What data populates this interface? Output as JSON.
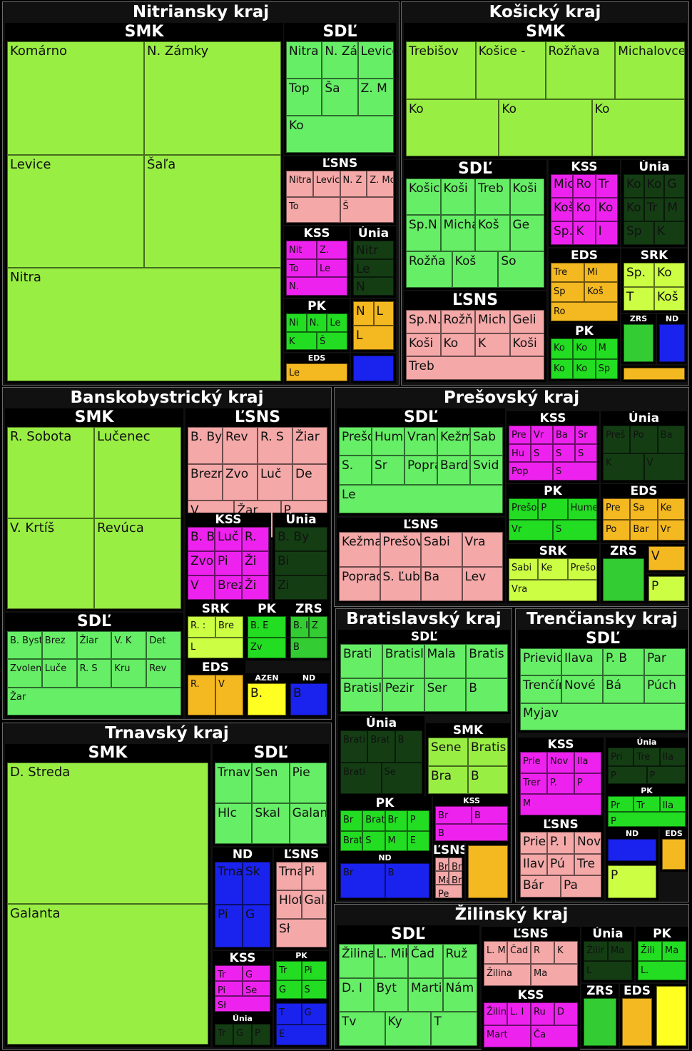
{
  "colors": {
    "SMK": "#99ee44",
    "SDĽ": "#66ee66",
    "ĽSNS": "#f4a8a8",
    "KSS": "#ee22ee",
    "Únia": "#143d14",
    "PK": "#22dd22",
    "EDS": "#f4b820",
    "SRK": "#ccff44",
    "ZRS": "#33cc33",
    "ND": "#1a22ee",
    "AZEN": "#ffff22"
  },
  "chart_data": {
    "type": "treemap",
    "regions": [
      {
        "name": "Nitriansky kraj",
        "parties": [
          {
            "name": "SMK",
            "districts": [
              "Komárno",
              "N. Zámky",
              "Levice",
              "Šaľa",
              "Nitra"
            ]
          },
          {
            "name": "SDĽ",
            "districts": [
              "Nitra",
              "N. Zámk",
              "Levice",
              "Top",
              "Ša",
              "Z. M",
              "Ko"
            ]
          },
          {
            "name": "ĽSNS",
            "districts": [
              "Nitra",
              "Levic",
              "N. Z",
              "Z. Mo",
              "To",
              "Š"
            ]
          },
          {
            "name": "KSS",
            "districts": [
              "Nit",
              "Z.",
              "To",
              "Le",
              "N."
            ]
          },
          {
            "name": "Únia",
            "districts": [
              "Nitr",
              "Le",
              "N"
            ]
          },
          {
            "name": "PK",
            "districts": [
              "Ni",
              "N.",
              "Le",
              "K",
              "Š"
            ]
          },
          {
            "name": "",
            "districts": [
              "N",
              "L",
              "L"
            ]
          },
          {
            "name": "EDS",
            "districts": [
              "Le"
            ]
          },
          {
            "name": "",
            "districts": []
          }
        ]
      },
      {
        "name": "Košický kraj",
        "parties": [
          {
            "name": "SMK",
            "districts": [
              "Trebišov",
              "Košice -",
              "Rožňava",
              "Michalovce",
              "Ko",
              "Ko",
              "Ko"
            ]
          },
          {
            "name": "SDĽ",
            "districts": [
              "Košic",
              "Koši",
              "Treb",
              "Koši",
              "Sp.N",
              "Micha",
              "Koš",
              "Ge",
              "Rožňa",
              "Koš",
              "So"
            ]
          },
          {
            "name": "KSS",
            "districts": [
              "Mic",
              "Ro",
              "Tr",
              "Koši",
              "Ko",
              "Ko",
              "Sp.N",
              "K",
              "I"
            ]
          },
          {
            "name": "Únia",
            "districts": [
              "Ko",
              "Ko",
              "G",
              "Ko",
              "Tr",
              "M",
              "Sp",
              "K"
            ]
          },
          {
            "name": "EDS",
            "districts": [
              "Tre",
              "Mi",
              "Sp",
              "Koš",
              "Ro"
            ]
          },
          {
            "name": "SRK",
            "districts": [
              "Sp.",
              "Ko",
              "T",
              "Koš"
            ]
          },
          {
            "name": "ĽSNS",
            "districts": [
              "Sp.N.",
              "Rožň",
              "Mich",
              "Geli",
              "Koši",
              "Ko",
              "K",
              "Koši",
              "Treb"
            ]
          },
          {
            "name": "PK",
            "districts": [
              "Ko",
              "Ko",
              "M",
              "Ko",
              "Ko",
              "Sp"
            ]
          },
          {
            "name": "ZRS",
            "districts": []
          },
          {
            "name": "ND",
            "districts": []
          },
          {
            "name": "",
            "districts": []
          }
        ]
      },
      {
        "name": "Banskobystrický kraj",
        "parties": [
          {
            "name": "SMK",
            "districts": [
              "R. Sobota",
              "Lučenec",
              "V. Krtíš",
              "Revúca"
            ]
          },
          {
            "name": "ĽSNS",
            "districts": [
              "B. Bys",
              "Rev",
              "R. S",
              "Žiar",
              "Brezno",
              "Zvo",
              "Luč",
              "De",
              "V.",
              "Žar",
              "P"
            ]
          },
          {
            "name": "SDĽ",
            "districts": [
              "B. Bystr",
              "Brez",
              "Žiar",
              "V. K",
              "Det",
              "Zvolen",
              "Luče",
              "R. S",
              "Kru",
              "Rev",
              "Žar"
            ]
          },
          {
            "name": "KSS",
            "districts": [
              "B. B",
              "Luč",
              "R.",
              "Zvol",
              "Pi",
              "Ži",
              "V",
              "Brez",
              "Ži"
            ]
          },
          {
            "name": "Únia",
            "districts": [
              "B. By",
              "Bi",
              "Zi"
            ]
          },
          {
            "name": "SRK",
            "districts": [
              "R. :",
              "Bre",
              "L"
            ]
          },
          {
            "name": "PK",
            "districts": [
              "B. E",
              "Zv"
            ]
          },
          {
            "name": "ZRS",
            "districts": [
              "B. I",
              "Z",
              "B"
            ]
          },
          {
            "name": "EDS",
            "districts": [
              "R.",
              "V"
            ]
          },
          {
            "name": "AZEN",
            "districts": [
              "B."
            ]
          },
          {
            "name": "ND",
            "districts": [
              "B"
            ]
          }
        ]
      },
      {
        "name": "Prešovský kraj",
        "parties": [
          {
            "name": "SDĽ",
            "districts": [
              "Prešov",
              "Hum",
              "Vran",
              "Kežm",
              "Sab",
              "S.",
              "Sr",
              "Poprad",
              "Bard",
              "Svid",
              "Le"
            ]
          },
          {
            "name": "KSS",
            "districts": [
              "Pre",
              "Vr",
              "Ba",
              "Sr",
              "Hu",
              "S",
              "S",
              "S",
              "Pop",
              "S"
            ]
          },
          {
            "name": "Únia",
            "districts": [
              "Preš",
              "Po",
              "Ba",
              "K",
              "V"
            ]
          },
          {
            "name": "ĽSNS",
            "districts": [
              "Kežmar",
              "Prešov",
              "Sabi",
              "Vra",
              "Poprad",
              "S. Ľub",
              "Ba",
              "Lev"
            ]
          },
          {
            "name": "PK",
            "districts": [
              "Prešo",
              "P",
              "Hume",
              "Vr",
              "S"
            ]
          },
          {
            "name": "EDS",
            "districts": [
              "Pre",
              "Sa",
              "Ke",
              "Po",
              "Bar",
              "Vr"
            ]
          },
          {
            "name": "SRK",
            "districts": [
              "Sabi",
              "Ke",
              "Prešo",
              "Vra"
            ]
          },
          {
            "name": "ZRS",
            "districts": []
          },
          {
            "name": "",
            "districts": [
              "V"
            ]
          },
          {
            "name": "",
            "districts": [
              "P"
            ]
          }
        ]
      },
      {
        "name": "Bratislavský kraj",
        "parties": [
          {
            "name": "SDĽ",
            "districts": [
              "Brati",
              "Bratisla",
              "Mala",
              "Bratis",
              "Bratisla",
              "Pezir",
              "Ser",
              "B"
            ]
          },
          {
            "name": "Únia",
            "districts": [
              "Brati",
              "Brat",
              "B",
              "Brati",
              "Se"
            ]
          },
          {
            "name": "SMK",
            "districts": [
              "Sene",
              "Bratis",
              "Bra",
              "B"
            ]
          },
          {
            "name": "PK",
            "districts": [
              "Br",
              "Brat",
              "Br",
              "P",
              "Brat",
              "S",
              "M",
              "E"
            ]
          },
          {
            "name": "KSS",
            "districts": [
              "Br",
              "B",
              "B"
            ]
          },
          {
            "name": "ĽSNS",
            "districts": [
              "Br",
              "Bra",
              "Ma",
              "Bra",
              "Pe"
            ]
          },
          {
            "name": "ND",
            "districts": [
              "Br",
              "B"
            ]
          },
          {
            "name": "",
            "districts": []
          }
        ]
      },
      {
        "name": "Trenčiansky kraj",
        "parties": [
          {
            "name": "SDĽ",
            "districts": [
              "Prievidza",
              "Ilava",
              "P. B",
              "Par",
              "Trenčín",
              "Nové",
              "Bá",
              "Púch",
              "Myjav"
            ]
          },
          {
            "name": "KSS",
            "districts": [
              "Prie",
              "Nov",
              "Ila",
              "Trer",
              "P.",
              "P",
              "M"
            ]
          },
          {
            "name": "Únia",
            "districts": [
              "Pri",
              "Tre",
              "Ila",
              "P",
              "P"
            ]
          },
          {
            "name": "PK",
            "districts": [
              "Pr",
              "Tr",
              "Ila",
              "P"
            ]
          },
          {
            "name": "ĽSNS",
            "districts": [
              "Prie",
              "P. I",
              "Nov",
              "Ilav",
              "Pú",
              "Tre",
              "Bár",
              "Pa"
            ]
          },
          {
            "name": "ND",
            "districts": []
          },
          {
            "name": "EDS",
            "districts": []
          },
          {
            "name": "",
            "districts": [
              "P"
            ]
          }
        ]
      },
      {
        "name": "Trnavský kraj",
        "parties": [
          {
            "name": "SMK",
            "districts": [
              "D. Streda",
              "Galanta"
            ]
          },
          {
            "name": "SDĽ",
            "districts": [
              "Trnava",
              "Sen",
              "Pie",
              "Hlc",
              "Skal",
              "Galanta"
            ]
          },
          {
            "name": "ND",
            "districts": [
              "Trna",
              "Sk",
              "Pi",
              "G"
            ]
          },
          {
            "name": "ĽSNS",
            "districts": [
              "Trna",
              "Pi",
              "Hlof",
              "Gal.",
              "Sł"
            ]
          },
          {
            "name": "KSS",
            "districts": [
              "Tr",
              "G",
              "Pi",
              "Se",
              "Sł"
            ]
          },
          {
            "name": "PK",
            "districts": [
              "Tr",
              "Pi",
              "G",
              "S"
            ]
          },
          {
            "name": "Únia",
            "districts": [
              "Tr",
              "G",
              "P"
            ]
          },
          {
            "name": "",
            "districts": [
              "T",
              "G",
              "E"
            ]
          }
        ]
      },
      {
        "name": "Žilinský kraj",
        "parties": [
          {
            "name": "SDĽ",
            "districts": [
              "Žilina",
              "L. Miku",
              "Čad",
              "Ruž",
              "D. I",
              "Byt",
              "Martin",
              "Nám",
              "Tv",
              "Ky",
              "T"
            ]
          },
          {
            "name": "ĽSNS",
            "districts": [
              "L. Mi",
              "Čad",
              "R",
              "K",
              "Žilina",
              "Ma"
            ]
          },
          {
            "name": "KSS",
            "districts": [
              "Žilin",
              "L. I",
              "Ru",
              "D",
              "Mart",
              "Ča"
            ]
          },
          {
            "name": "Únia",
            "districts": [
              "Žilir",
              "Ma",
              "L"
            ]
          },
          {
            "name": "PK",
            "districts": [
              "Žili",
              "Ma",
              "L."
            ]
          },
          {
            "name": "ZRS",
            "districts": []
          },
          {
            "name": "EDS",
            "districts": []
          },
          {
            "name": "",
            "districts": []
          }
        ]
      }
    ]
  }
}
